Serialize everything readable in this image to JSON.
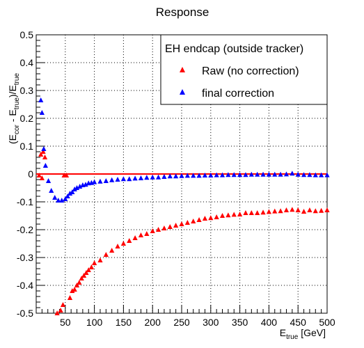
{
  "chart_data": {
    "type": "scatter",
    "title": "Response",
    "xlabel": {
      "main": "E",
      "sub": "true",
      "unit": " [GeV]"
    },
    "ylabel": {
      "parts": [
        "(E",
        "cor",
        " - E",
        "true",
        ")/E",
        "true"
      ]
    },
    "xlim": [
      0,
      500
    ],
    "ylim": [
      -0.5,
      0.5
    ],
    "xticks": [
      50,
      100,
      150,
      200,
      250,
      300,
      350,
      400,
      450,
      500
    ],
    "yticks": [
      -0.5,
      -0.4,
      -0.3,
      -0.2,
      -0.1,
      0,
      0.1,
      0.2,
      0.3,
      0.4,
      0.5
    ],
    "ytick_labels": [
      "-0.5",
      "-0.4",
      "-0.3",
      "-0.2",
      "-0.1",
      "0",
      "0.1",
      "0.2",
      "0.3",
      "0.4",
      "0.5"
    ],
    "grid": true,
    "reference_line": {
      "y": 0,
      "color": "#ff0000"
    },
    "legend": {
      "title": "EH endcap (outside tracker)",
      "position": "top-right",
      "entries": [
        {
          "label": "Raw (no correction)",
          "color": "#ff0000",
          "marker": "triangle"
        },
        {
          "label": "final correction",
          "color": "#0000ff",
          "marker": "triangle"
        }
      ]
    },
    "series": [
      {
        "name": "Raw (no correction)",
        "color": "#ff0000",
        "points": [
          [
            5,
            -0.005
          ],
          [
            8,
            0.07
          ],
          [
            10,
            -0.015
          ],
          [
            12,
            0.08
          ],
          [
            15,
            0.06
          ],
          [
            36,
            -0.5
          ],
          [
            42,
            -0.49
          ],
          [
            46,
            -0.47
          ],
          [
            48,
            -0.005
          ],
          [
            52,
            -0.005
          ],
          [
            58,
            -0.445
          ],
          [
            62,
            -0.42
          ],
          [
            66,
            -0.415
          ],
          [
            70,
            -0.4
          ],
          [
            74,
            -0.39
          ],
          [
            78,
            -0.375
          ],
          [
            82,
            -0.365
          ],
          [
            86,
            -0.355
          ],
          [
            90,
            -0.345
          ],
          [
            95,
            -0.335
          ],
          [
            100,
            -0.32
          ],
          [
            110,
            -0.31
          ],
          [
            120,
            -0.29
          ],
          [
            130,
            -0.275
          ],
          [
            140,
            -0.26
          ],
          [
            150,
            -0.25
          ],
          [
            160,
            -0.24
          ],
          [
            170,
            -0.23
          ],
          [
            180,
            -0.22
          ],
          [
            190,
            -0.215
          ],
          [
            200,
            -0.205
          ],
          [
            210,
            -0.2
          ],
          [
            220,
            -0.195
          ],
          [
            230,
            -0.19
          ],
          [
            240,
            -0.185
          ],
          [
            250,
            -0.18
          ],
          [
            260,
            -0.175
          ],
          [
            270,
            -0.17
          ],
          [
            280,
            -0.165
          ],
          [
            290,
            -0.16
          ],
          [
            300,
            -0.158
          ],
          [
            310,
            -0.155
          ],
          [
            320,
            -0.15
          ],
          [
            330,
            -0.148
          ],
          [
            340,
            -0.146
          ],
          [
            350,
            -0.145
          ],
          [
            360,
            -0.14
          ],
          [
            370,
            -0.14
          ],
          [
            380,
            -0.14
          ],
          [
            390,
            -0.138
          ],
          [
            400,
            -0.136
          ],
          [
            410,
            -0.134
          ],
          [
            420,
            -0.133
          ],
          [
            430,
            -0.13
          ],
          [
            440,
            -0.128
          ],
          [
            450,
            -0.13
          ],
          [
            460,
            -0.135
          ],
          [
            470,
            -0.13
          ],
          [
            480,
            -0.133
          ],
          [
            490,
            -0.132
          ],
          [
            500,
            -0.13
          ]
        ]
      },
      {
        "name": "final correction",
        "color": "#0000ff",
        "points": [
          [
            8,
            0.265
          ],
          [
            10,
            0.22
          ],
          [
            13,
            0.09
          ],
          [
            16,
            0.03
          ],
          [
            21,
            -0.025
          ],
          [
            26,
            -0.06
          ],
          [
            32,
            -0.085
          ],
          [
            38,
            -0.095
          ],
          [
            44,
            -0.095
          ],
          [
            50,
            -0.09
          ],
          [
            54,
            -0.08
          ],
          [
            58,
            -0.07
          ],
          [
            62,
            -0.065
          ],
          [
            66,
            -0.055
          ],
          [
            70,
            -0.05
          ],
          [
            75,
            -0.045
          ],
          [
            80,
            -0.04
          ],
          [
            85,
            -0.038
          ],
          [
            90,
            -0.033
          ],
          [
            95,
            -0.032
          ],
          [
            100,
            -0.029
          ],
          [
            110,
            -0.027
          ],
          [
            120,
            -0.025
          ],
          [
            130,
            -0.022
          ],
          [
            140,
            -0.02
          ],
          [
            150,
            -0.018
          ],
          [
            160,
            -0.018
          ],
          [
            170,
            -0.016
          ],
          [
            180,
            -0.015
          ],
          [
            190,
            -0.013
          ],
          [
            200,
            -0.012
          ],
          [
            210,
            -0.012
          ],
          [
            220,
            -0.01
          ],
          [
            230,
            -0.008
          ],
          [
            240,
            -0.008
          ],
          [
            250,
            -0.007
          ],
          [
            260,
            -0.006
          ],
          [
            270,
            -0.006
          ],
          [
            280,
            -0.006
          ],
          [
            290,
            -0.005
          ],
          [
            300,
            -0.005
          ],
          [
            310,
            -0.004
          ],
          [
            320,
            -0.004
          ],
          [
            330,
            -0.003
          ],
          [
            340,
            -0.003
          ],
          [
            350,
            -0.003
          ],
          [
            360,
            -0.003
          ],
          [
            370,
            -0.002
          ],
          [
            380,
            -0.002
          ],
          [
            390,
            -0.002
          ],
          [
            400,
            -0.002
          ],
          [
            410,
            -0.002
          ],
          [
            420,
            -0.002
          ],
          [
            430,
            -0.001
          ],
          [
            440,
            0.002
          ],
          [
            450,
            -0.002
          ],
          [
            460,
            -0.003
          ],
          [
            470,
            -0.003
          ],
          [
            480,
            -0.004
          ],
          [
            490,
            -0.004
          ],
          [
            500,
            -0.004
          ]
        ]
      }
    ]
  }
}
